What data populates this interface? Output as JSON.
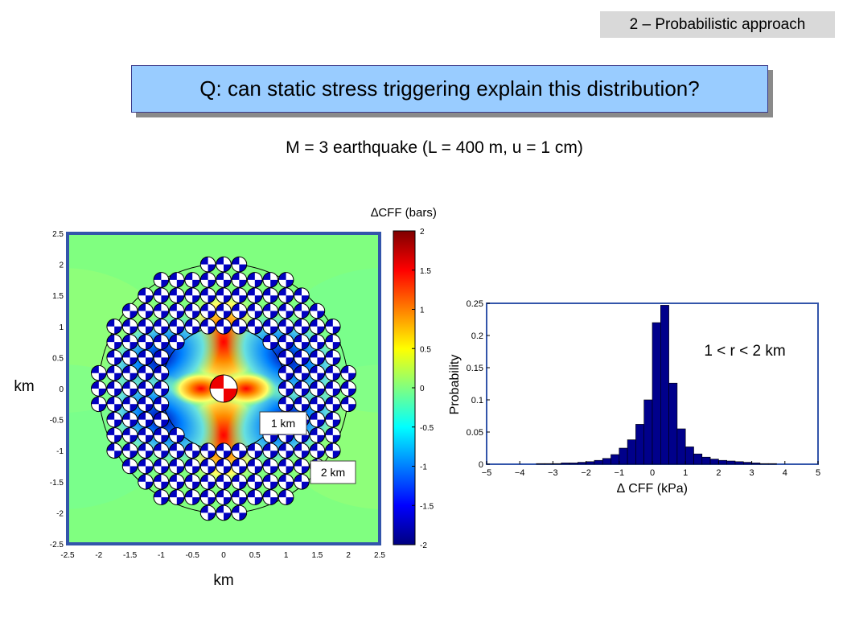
{
  "section_tag": "2 – Probabilistic approach",
  "question": "Q: can static stress triggering explain this distribution?",
  "subtitle": "M = 3 earthquake (L = 400 m, u = 1 cm)",
  "colors": {
    "question_box": "#99ccff",
    "section_tag_bg": "#d9d9d9",
    "bar_fill": "#00008b",
    "map_background": "#80ff80"
  },
  "map": {
    "xlabel": "km",
    "ylabel": "km",
    "x_ticks": [
      "-2.5",
      "-2",
      "-1.5",
      "-1",
      "-0.5",
      "0",
      "0.5",
      "1",
      "1.5",
      "2",
      "2.5"
    ],
    "y_ticks": [
      "2.5",
      "2",
      "1.5",
      "1",
      "0.5",
      "0",
      "-0.5",
      "-1",
      "-1.5",
      "-2",
      "-2.5"
    ],
    "xlim": [
      -2.5,
      2.5
    ],
    "ylim": [
      -2.5,
      2.5
    ],
    "inner_radius_label": "1 km",
    "outer_radius_label": "2 km",
    "inner_radius_km": 1,
    "outer_radius_km": 2
  },
  "colorbar": {
    "label": "∆CFF (bars)",
    "ticks": [
      "2",
      "1.5",
      "1",
      "0.5",
      "0",
      "-0.5",
      "-1",
      "-1.5",
      "-2"
    ],
    "range": [
      -2,
      2
    ]
  },
  "chart_data": {
    "type": "bar",
    "xlabel": "∆ CFF (kPa)",
    "ylabel": "Probability",
    "annotation": "1 < r < 2 km",
    "xlim": [
      -5,
      5
    ],
    "ylim": [
      0,
      0.25
    ],
    "x_ticks": [
      "−5",
      "−4",
      "−3",
      "−2",
      "−1",
      "0",
      "1",
      "2",
      "3",
      "4",
      "5"
    ],
    "y_ticks": [
      "0",
      "0.05",
      "0.1",
      "0.15",
      "0.2",
      "0.25"
    ],
    "bin_width": 0.25,
    "x": [
      -4.875,
      -4.625,
      -4.375,
      -4.125,
      -3.875,
      -3.625,
      -3.375,
      -3.125,
      -2.875,
      -2.625,
      -2.375,
      -2.125,
      -1.875,
      -1.625,
      -1.375,
      -1.125,
      -0.875,
      -0.625,
      -0.375,
      -0.125,
      0.125,
      0.375,
      0.625,
      0.875,
      1.125,
      1.375,
      1.625,
      1.875,
      2.125,
      2.375,
      2.625,
      2.875,
      3.125,
      3.375,
      3.625,
      3.875,
      4.125,
      4.375,
      4.625,
      4.875
    ],
    "values": [
      0,
      0,
      0,
      0,
      0,
      0,
      0.001,
      0.001,
      0.001,
      0.002,
      0.002,
      0.003,
      0.004,
      0.006,
      0.009,
      0.015,
      0.025,
      0.038,
      0.062,
      0.1,
      0.22,
      0.247,
      0.126,
      0.055,
      0.027,
      0.016,
      0.011,
      0.008,
      0.006,
      0.005,
      0.004,
      0.003,
      0.002,
      0.001,
      0.001,
      0,
      0,
      0,
      0,
      0
    ]
  }
}
